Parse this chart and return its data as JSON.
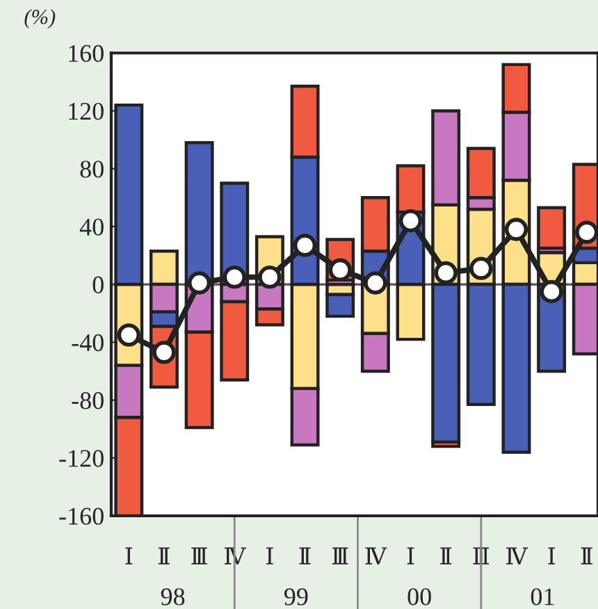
{
  "chart_data": {
    "type": "bar",
    "stacked": true,
    "ylabel": "(%)",
    "categories": [
      "Ⅰ",
      "Ⅱ",
      "Ⅲ",
      "Ⅳ",
      "Ⅰ",
      "Ⅱ",
      "Ⅲ",
      "Ⅳ",
      "Ⅰ",
      "Ⅱ",
      "Ⅲ",
      "Ⅳ",
      "Ⅰ",
      "Ⅱ"
    ],
    "annotations": [
      "98",
      "99",
      "00",
      "01"
    ],
    "series": [
      {
        "color": "#ffe08a",
        "values": [
          -56,
          23,
          null,
          null,
          33,
          -72,
          -7,
          -34,
          -38,
          55,
          52,
          72,
          22,
          15
        ]
      },
      {
        "color": "#c878c0",
        "values": [
          -36,
          -19,
          -33,
          -12,
          -17,
          -39,
          3,
          -26,
          null,
          65,
          8,
          47,
          3,
          -48
        ]
      },
      {
        "color": "#4a5fb8",
        "values": [
          124,
          -10,
          98,
          70,
          null,
          88,
          -15,
          23,
          50,
          -109,
          -83,
          -116,
          -60,
          10
        ]
      },
      {
        "color": "#f05a40",
        "values": [
          -68,
          -42,
          -66,
          -54,
          -11,
          49,
          28,
          37,
          32,
          -3,
          34,
          33,
          28,
          58
        ]
      },
      {
        "type": "line",
        "color": "#222222",
        "marker": "circle",
        "values": [
          -35,
          -47,
          1,
          5,
          5,
          27,
          10,
          1,
          44,
          8,
          11,
          38,
          -5,
          36
        ]
      }
    ],
    "ylim": [
      -160,
      160
    ],
    "yticks": [
      -160,
      -120,
      -80,
      -40,
      0,
      40,
      80,
      120,
      160
    ],
    "ref_lines": [
      {
        "axis": "y",
        "value": 0,
        "color": "#555555"
      }
    ],
    "grid": false,
    "legend": false
  }
}
